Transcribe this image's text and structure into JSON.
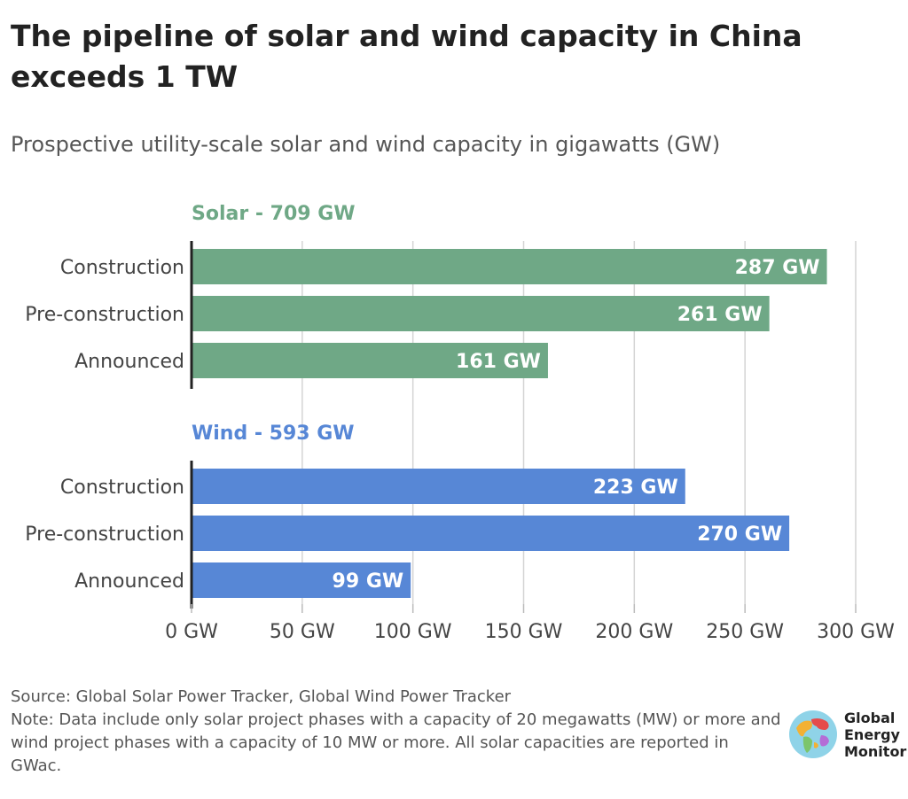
{
  "title": "The pipeline of solar and wind capacity in China exceeds 1 TW",
  "subtitle": "Prospective utility-scale solar and wind capacity in gigawatts (GW)",
  "footer": {
    "source": "Source: Global Solar Power Tracker, Global Wind Power Tracker",
    "note": "Note: Data include only solar project phases with a capacity of 20 megawatts (MW) or more and wind project phases with a capacity of 10 MW or more. All solar capacities are reported in GWac."
  },
  "logo": {
    "lines": [
      "Global",
      "Energy",
      "Monitor"
    ]
  },
  "chart_data": {
    "type": "bar",
    "orientation": "horizontal",
    "unit": "GW",
    "xlim": [
      0,
      300
    ],
    "xticks": [
      0,
      50,
      100,
      150,
      200,
      250,
      300
    ],
    "xtick_labels": [
      "0 GW",
      "50 GW",
      "100 GW",
      "150 GW",
      "200 GW",
      "250 GW",
      "300 GW"
    ],
    "grid": true,
    "categories": [
      "Construction",
      "Pre-construction",
      "Announced"
    ],
    "panels": [
      {
        "name": "Solar - 709 GW",
        "color": "#6fa886",
        "values": [
          287,
          261,
          161
        ],
        "labels": [
          "287 GW",
          "261 GW",
          "161 GW"
        ]
      },
      {
        "name": "Wind - 593 GW",
        "color": "#5787d6",
        "values": [
          223,
          270,
          99
        ],
        "labels": [
          "223 GW",
          "270 GW",
          "99 GW"
        ]
      }
    ]
  }
}
